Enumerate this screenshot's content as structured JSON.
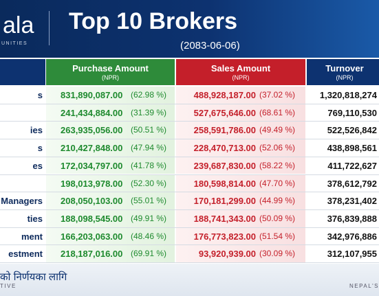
{
  "header": {
    "logo": "ala",
    "tagline": "UNITIES",
    "title": "Top 10 Brokers",
    "date": "(2083-06-06)"
  },
  "table": {
    "columns": [
      {
        "title": "Purchase Amount",
        "unit": "(NPR)"
      },
      {
        "title": "Sales Amount",
        "unit": "(NPR)"
      },
      {
        "title": "Turnover",
        "unit": "(NPR)"
      }
    ],
    "rows": [
      {
        "broker": "s",
        "purchase": "831,890,087.00",
        "purchase_pct": "(62.98 %)",
        "sales": "488,928,187.00",
        "sales_pct": "(37.02 %)",
        "turnover": "1,320,818,274"
      },
      {
        "broker": null,
        "purchase": "241,434,884.00",
        "purchase_pct": "(31.39 %)",
        "sales": "527,675,646.00",
        "sales_pct": "(68.61 %)",
        "turnover": "769,110,530"
      },
      {
        "broker": "ies",
        "purchase": "263,935,056.00",
        "purchase_pct": "(50.51 %)",
        "sales": "258,591,786.00",
        "sales_pct": "(49.49 %)",
        "turnover": "522,526,842"
      },
      {
        "broker": "s",
        "purchase": "210,427,848.00",
        "purchase_pct": "(47.94 %)",
        "sales": "228,470,713.00",
        "sales_pct": "(52.06 %)",
        "turnover": "438,898,561"
      },
      {
        "broker": "es",
        "purchase": "172,034,797.00",
        "purchase_pct": "(41.78 %)",
        "sales": "239,687,830.00",
        "sales_pct": "(58.22 %)",
        "turnover": "411,722,627"
      },
      {
        "broker": null,
        "purchase": "198,013,978.00",
        "purchase_pct": "(52.30 %)",
        "sales": "180,598,814.00",
        "sales_pct": "(47.70 %)",
        "turnover": "378,612,792"
      },
      {
        "broker": "Managers",
        "purchase": "208,050,103.00",
        "purchase_pct": "(55.01 %)",
        "sales": "170,181,299.00",
        "sales_pct": "(44.99 %)",
        "turnover": "378,231,402"
      },
      {
        "broker": "ties",
        "purchase": "188,098,545.00",
        "purchase_pct": "(49.91 %)",
        "sales": "188,741,343.00",
        "sales_pct": "(50.09 %)",
        "turnover": "376,839,888"
      },
      {
        "broker": "ment",
        "purchase": "166,203,063.00",
        "purchase_pct": "(48.46 %)",
        "sales": "176,773,823.00",
        "sales_pct": "(51.54 %)",
        "turnover": "342,976,886"
      },
      {
        "broker": "estment",
        "purchase": "218,187,016.00",
        "purchase_pct": "(69.91 %)",
        "sales": "93,920,939.00",
        "sales_pct": "(30.09 %)",
        "turnover": "312,107,955"
      }
    ]
  },
  "footer": {
    "tagline": "को निर्णयका लागि",
    "left": "TIVE",
    "right": "NEPAL'S"
  }
}
